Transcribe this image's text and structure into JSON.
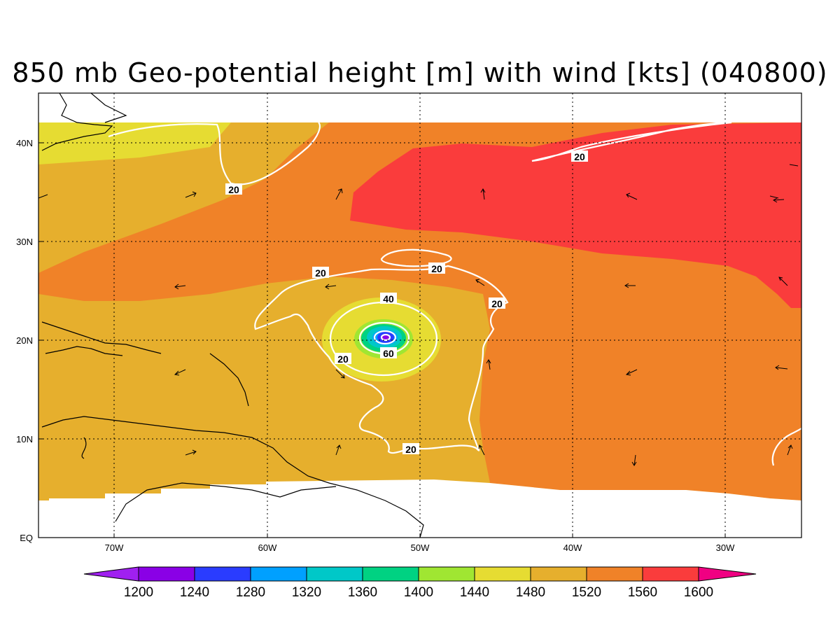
{
  "title": "850 mb Geo-potential height [m] with wind [kts] (040800)",
  "colors": {
    "c1200": "#a020f0",
    "c1240": "#8a00e6",
    "c1280": "#2a3cff",
    "c1320": "#00a0ff",
    "c1360": "#00c8c8",
    "c1400": "#00d282",
    "c1440": "#a0e632",
    "c1480": "#e6dc32",
    "c1520": "#e6af2d",
    "c1560": "#f08228",
    "c1600": "#fa3c3c",
    "cmax": "#f00082",
    "contour": "#ffffff",
    "coast": "#000000"
  },
  "chart_data": {
    "type": "heatmap",
    "title": "850 mb Geo-potential height [m] with wind [kts] (040800)",
    "x_tick_labels": [
      "70W",
      "60W",
      "50W",
      "40W",
      "30W"
    ],
    "y_tick_labels": [
      "EQ",
      "10N",
      "20N",
      "30N",
      "40N"
    ],
    "x_range": [
      "75W",
      "25W"
    ],
    "y_range": [
      "EQ",
      "45N"
    ],
    "grid": true,
    "colorbar": {
      "levels": [
        "1200",
        "1240",
        "1280",
        "1320",
        "1360",
        "1400",
        "1440",
        "1480",
        "1520",
        "1560",
        "1600"
      ],
      "extend": "both"
    },
    "wind_contour_labels": [
      "20",
      "20",
      "20",
      "20",
      "20",
      "20",
      "40",
      "60",
      "20"
    ]
  }
}
